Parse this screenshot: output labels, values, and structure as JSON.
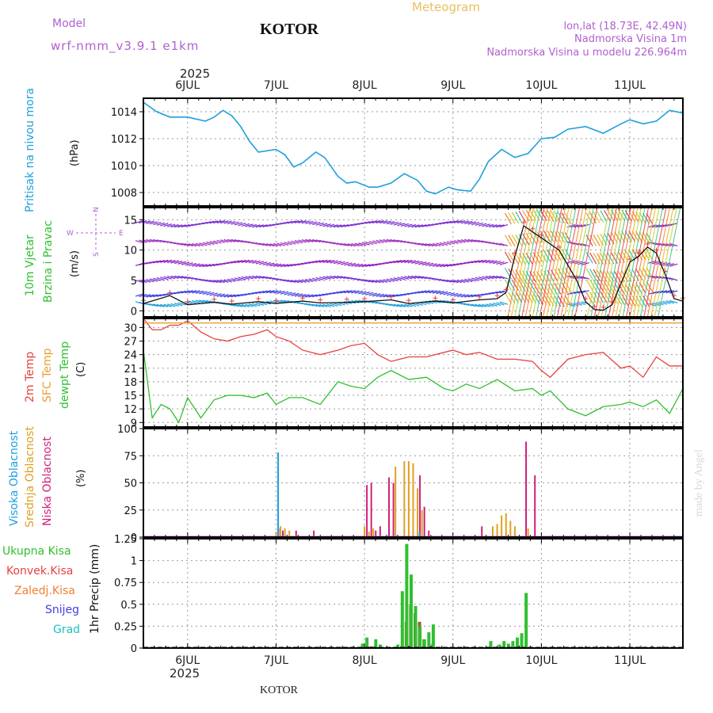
{
  "header": {
    "model_label": "Model",
    "model_name": "wrf-nmm_v3.9.1  e1km",
    "city_title": "KOTOR",
    "meteogram_label": "Meteogram",
    "lonlat": "lon,lat (18.73E, 42.49N)",
    "elevation": "Nadmorska Visina 1m",
    "model_elevation": "Nadmorska Visina u modelu 226.964m"
  },
  "footer": {
    "city": "KOTOR",
    "credit": "made by Angel"
  },
  "colors": {
    "pressure": "#1e9fdc",
    "temp2m": "#e84040",
    "sfc": "#e8a030",
    "dewpt": "#30c030",
    "high": "#1e9fdc",
    "mid": "#e0a020",
    "low": "#d0207a",
    "total": "#30c030",
    "conv": "#e84040",
    "strat": "#f08030",
    "snow": "#4040e0",
    "grad": "#20c0c0"
  },
  "time_axis": {
    "year": "2025",
    "days": [
      "6JUL",
      "7JUL",
      "8JUL",
      "9JUL",
      "10JUL",
      "11JUL"
    ],
    "start_day_offset": -0.5,
    "end_day_offset": 5.6
  },
  "chart_data": [
    {
      "type": "line",
      "title": "Pritisak na nivou mora",
      "ylabel": "(hPa)",
      "ylim": [
        1007,
        1015
      ],
      "yticks": [
        1008,
        1010,
        1012,
        1014
      ],
      "grid": true,
      "x": [
        -0.5,
        -0.35,
        -0.2,
        0,
        0.2,
        0.3,
        0.4,
        0.5,
        0.6,
        0.7,
        0.8,
        1.0,
        1.1,
        1.2,
        1.3,
        1.45,
        1.55,
        1.7,
        1.8,
        1.9,
        2.05,
        2.15,
        2.3,
        2.45,
        2.6,
        2.7,
        2.8,
        2.95,
        3.05,
        3.2,
        3.3,
        3.4,
        3.55,
        3.7,
        3.85,
        4.0,
        4.15,
        4.3,
        4.5,
        4.7,
        4.9,
        5.0,
        5.15,
        5.3,
        5.45,
        5.6
      ],
      "series": [
        {
          "name": "Pritisak na nivou mora",
          "values": [
            1014.7,
            1014.0,
            1013.6,
            1013.6,
            1013.3,
            1013.6,
            1014.1,
            1013.7,
            1012.9,
            1011.8,
            1011.0,
            1011.2,
            1010.8,
            1009.9,
            1010.2,
            1011.0,
            1010.6,
            1009.2,
            1008.7,
            1008.8,
            1008.4,
            1008.4,
            1008.7,
            1009.4,
            1008.9,
            1008.1,
            1007.9,
            1008.4,
            1008.2,
            1008.1,
            1009.0,
            1010.3,
            1011.2,
            1010.6,
            1010.9,
            1012.0,
            1012.1,
            1012.7,
            1012.9,
            1012.4,
            1013.1,
            1013.4,
            1013.1,
            1013.3,
            1014.1,
            1013.9
          ]
        }
      ]
    },
    {
      "type": "line",
      "title": "10m Vjetar Brzina i Pravac",
      "ylabel": "(m/s)",
      "ylim": [
        -1,
        17
      ],
      "yticks": [
        0,
        5,
        10,
        15
      ],
      "grid": true,
      "legend_compass": [
        "N",
        "E",
        "S",
        "W"
      ],
      "x": [
        -0.5,
        -0.2,
        0,
        0.3,
        0.5,
        0.8,
        1.0,
        1.3,
        1.5,
        1.8,
        2.0,
        2.3,
        2.5,
        2.8,
        3.0,
        3.3,
        3.5,
        3.6,
        3.7,
        3.8,
        3.9,
        4.0,
        4.2,
        4.4,
        4.5,
        4.6,
        4.7,
        4.8,
        5.0,
        5.1,
        5.2,
        5.3,
        5.4,
        5.5,
        5.6
      ],
      "series": [
        {
          "name": "Brzina",
          "values": [
            1.2,
            2.5,
            1.0,
            1.4,
            1.1,
            1.5,
            1.2,
            1.6,
            1.3,
            1.4,
            1.5,
            1.8,
            1.2,
            1.6,
            1.3,
            1.8,
            2.0,
            3.0,
            9.0,
            14.0,
            13.0,
            12.0,
            10.0,
            5.0,
            1.5,
            0.2,
            0.1,
            1.0,
            8.0,
            9.0,
            10.5,
            9.5,
            6.0,
            2.0,
            1.6
          ]
        }
      ]
    },
    {
      "type": "line",
      "title": "2m Temp / SFC Temp / dewpt Temp",
      "ylabel": "(C)",
      "ylim": [
        8,
        32
      ],
      "yticks": [
        9,
        12,
        15,
        18,
        21,
        24,
        27,
        30
      ],
      "grid": true,
      "x": [
        -0.5,
        -0.4,
        -0.3,
        -0.2,
        -0.1,
        0,
        0.15,
        0.3,
        0.45,
        0.6,
        0.75,
        0.9,
        1.0,
        1.15,
        1.3,
        1.5,
        1.7,
        1.85,
        2.0,
        2.15,
        2.3,
        2.5,
        2.7,
        2.9,
        3.0,
        3.15,
        3.3,
        3.5,
        3.7,
        3.9,
        4.0,
        4.1,
        4.3,
        4.5,
        4.7,
        4.9,
        5.0,
        5.15,
        5.3,
        5.45,
        5.6
      ],
      "series": [
        {
          "name": "2m Temp",
          "values": [
            32.0,
            29.5,
            29.5,
            30.5,
            30.5,
            31.5,
            29.0,
            27.5,
            27.0,
            28.0,
            28.5,
            29.5,
            28.0,
            27.0,
            25.0,
            24.0,
            25.0,
            26.0,
            26.5,
            24.0,
            22.5,
            23.5,
            23.5,
            24.5,
            25.0,
            24.0,
            24.5,
            23.0,
            23.0,
            22.5,
            20.5,
            19.0,
            23.0,
            24.0,
            24.5,
            21.0,
            21.5,
            19.0,
            23.5,
            21.5,
            21.5
          ]
        },
        {
          "name": "SFC Temp",
          "values": [
            31.0,
            31.0,
            31.0,
            31.0,
            31.0,
            31.0,
            31.0,
            31.0,
            31.0,
            31.0,
            31.0,
            31.0,
            31.0,
            31.0,
            31.0,
            31.0,
            31.0,
            31.0,
            31.0,
            31.0,
            31.0,
            31.0,
            31.0,
            31.0,
            31.0,
            31.0,
            31.0,
            31.0,
            31.0,
            31.0,
            31.0,
            31.0,
            31.0,
            31.0,
            31.0,
            31.0,
            31.0,
            31.0,
            31.0,
            31.0,
            31.0
          ]
        },
        {
          "name": "dewpt Temp",
          "values": [
            25.0,
            10.0,
            13.0,
            12.0,
            9.0,
            14.5,
            10.0,
            14.0,
            15.0,
            15.0,
            14.5,
            15.5,
            13.0,
            14.5,
            14.5,
            13.0,
            18.0,
            17.0,
            16.5,
            19.0,
            20.5,
            18.5,
            19.0,
            16.5,
            16.0,
            17.5,
            16.5,
            18.5,
            16.0,
            16.5,
            15.0,
            16.0,
            12.0,
            10.5,
            12.5,
            13.0,
            13.5,
            12.5,
            14.0,
            11.0,
            16.5
          ]
        }
      ]
    },
    {
      "type": "bar",
      "title": "Visoka Oblacnost / Srednja Oblacnost / Niska Oblacnost",
      "ylabel": "(%)",
      "ylim": [
        0,
        100
      ],
      "yticks": [
        0,
        25,
        50,
        75,
        100
      ],
      "grid": true,
      "x": [
        1.0,
        1.05,
        1.1,
        1.15,
        1.2,
        1.4,
        2.0,
        2.05,
        2.1,
        2.15,
        2.25,
        2.3,
        2.35,
        2.45,
        2.5,
        2.55,
        2.6,
        2.65,
        2.7,
        2.75,
        3.3,
        3.45,
        3.5,
        3.55,
        3.6,
        3.65,
        3.7,
        3.8,
        3.85,
        3.9,
        3.95
      ],
      "series": [
        {
          "name": "Visoka Oblacnost",
          "values": [
            0,
            78,
            0,
            0,
            0,
            0,
            0,
            0,
            0,
            0,
            0,
            0,
            0,
            0,
            0,
            0,
            0,
            5,
            0,
            0,
            0,
            0,
            0,
            0,
            0,
            0,
            0,
            0,
            0,
            0,
            0
          ]
        },
        {
          "name": "Srednja Oblacnost",
          "values": [
            5,
            10,
            8,
            6,
            0,
            0,
            10,
            5,
            8,
            0,
            0,
            0,
            65,
            70,
            70,
            68,
            45,
            25,
            0,
            0,
            0,
            10,
            12,
            20,
            22,
            15,
            10,
            0,
            8,
            0,
            0
          ]
        },
        {
          "name": "Niska Oblacnost",
          "values": [
            8,
            6,
            0,
            0,
            6,
            6,
            48,
            50,
            6,
            10,
            55,
            50,
            0,
            0,
            0,
            0,
            57,
            28,
            6,
            0,
            10,
            0,
            0,
            0,
            0,
            0,
            0,
            88,
            0,
            57,
            0
          ]
        }
      ]
    },
    {
      "type": "bar",
      "title": "1hr Precip (mm)",
      "ylabel": "1hr Precip (mm)",
      "ylim": [
        0,
        1.25
      ],
      "yticks": [
        0,
        0.25,
        0.5,
        0.75,
        1,
        1.25
      ],
      "grid": true,
      "legend": [
        "Ukupna Kisa",
        "Konvek.Kisa",
        "Zaledj.Kisa",
        "Snijeg",
        "Grad"
      ],
      "x": [
        2.0,
        2.05,
        2.15,
        2.2,
        2.4,
        2.45,
        2.5,
        2.55,
        2.6,
        2.65,
        2.7,
        2.75,
        2.8,
        3.45,
        3.55,
        3.6,
        3.65,
        3.7,
        3.75,
        3.8,
        3.85
      ],
      "series": [
        {
          "name": "Ukupna Kisa",
          "values": [
            0.05,
            0.12,
            0.1,
            0.04,
            0.04,
            0.65,
            1.19,
            0.84,
            0.48,
            0.24,
            0.1,
            0.18,
            0.27,
            0.08,
            0.04,
            0.08,
            0.05,
            0.08,
            0.12,
            0.17,
            0.63
          ]
        },
        {
          "name": "Konvek.Kisa",
          "values": [
            0,
            0.02,
            0,
            0,
            0.02,
            0.3,
            0.5,
            0.4,
            0.3,
            0.1,
            0.02,
            0.05,
            0,
            0,
            0,
            0,
            0,
            0,
            0,
            0,
            0
          ]
        }
      ]
    }
  ],
  "axis_labels": {
    "pressure": [
      "Pritisak na nivou mora",
      "(hPa)"
    ],
    "wind": [
      "10m Vjetar",
      "Brzina i Pravac",
      "(m/s)"
    ],
    "wind_compass": {
      "n": "N",
      "e": "E",
      "s": "S",
      "w": "W"
    },
    "temp": [
      "2m Temp",
      "SFC Temp",
      "dewpt Temp",
      "(C)"
    ],
    "cloud": [
      "Visoka Oblacnost",
      "Srednja Oblacnost",
      "Niska Oblacnost",
      "(%)"
    ],
    "precip": [
      "1hr Precip (mm)"
    ],
    "precip_legend": [
      "Ukupna Kisa",
      "Konvek.Kisa",
      "Zaledj.Kisa",
      "Snijeg",
      "Grad"
    ]
  }
}
